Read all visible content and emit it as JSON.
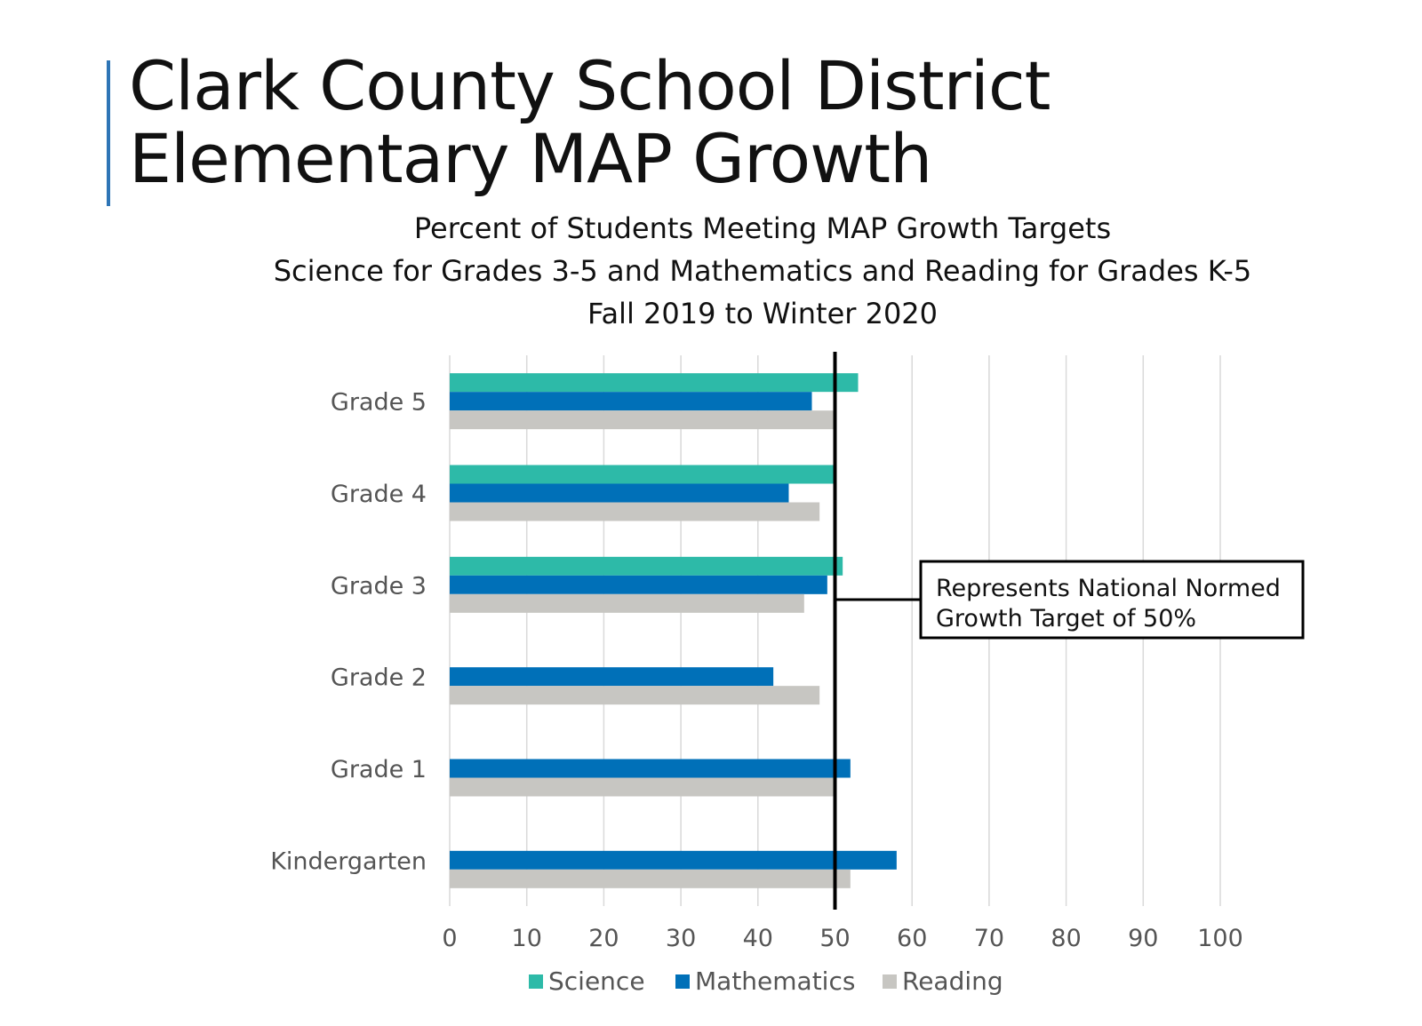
{
  "slide": {
    "title_line1": "Clark County School District",
    "title_line2": "Elementary MAP Growth",
    "accent_color": "#2e75b6"
  },
  "chart_data": {
    "type": "bar",
    "orientation": "horizontal",
    "title_lines": [
      "Percent of Students Meeting MAP Growth Targets",
      "Science for Grades 3-5 and Mathematics and Reading for Grades K-5",
      "Fall 2019 to Winter 2020"
    ],
    "categories": [
      "Grade 5",
      "Grade 4",
      "Grade 3",
      "Grade 2",
      "Grade 1",
      "Kindergarten"
    ],
    "series": [
      {
        "name": "Science",
        "color": "#2dbaa8",
        "values": [
          53,
          50,
          51,
          null,
          null,
          null
        ]
      },
      {
        "name": "Mathematics",
        "color": "#0070b8",
        "values": [
          47,
          44,
          49,
          42,
          52,
          58
        ]
      },
      {
        "name": "Reading",
        "color": "#c7c6c2",
        "values": [
          50,
          48,
          46,
          48,
          50,
          52
        ]
      }
    ],
    "xlim": [
      0,
      100
    ],
    "xticks": [
      0,
      10,
      20,
      30,
      40,
      50,
      60,
      70,
      80,
      90,
      100
    ],
    "grid": true,
    "legend_position": "bottom",
    "reference_line": {
      "value": 50,
      "color": "#000000"
    },
    "annotation": {
      "line1": "Represents National Normed",
      "line2": "Growth Target of 50%"
    }
  }
}
